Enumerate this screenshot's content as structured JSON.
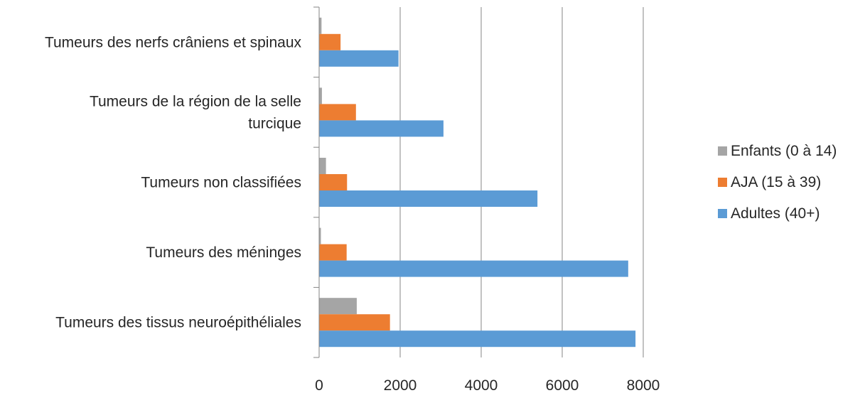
{
  "chart_data": {
    "type": "bar",
    "orientation": "horizontal",
    "categories": [
      [
        "Tumeurs des nerfs crâniens et spinaux"
      ],
      [
        "Tumeurs de la région de la selle",
        "turcique"
      ],
      [
        "Tumeurs non classifiées"
      ],
      [
        "Tumeurs des méninges"
      ],
      [
        "Tumeurs des tissus neuroépithéliales"
      ]
    ],
    "series": [
      {
        "name": "Enfants (0 à 14)",
        "color": "#a5a5a5",
        "values": [
          50,
          60,
          160,
          35,
          920
        ]
      },
      {
        "name": "AJA (15 à 39)",
        "color": "#ed7d31",
        "values": [
          520,
          900,
          680,
          670,
          1740
        ]
      },
      {
        "name": "Adultes (40+)",
        "color": "#5b9bd5",
        "values": [
          1950,
          3060,
          5380,
          7620,
          7800
        ]
      }
    ],
    "xlim": [
      0,
      8000
    ],
    "xticks": [
      "0",
      "2000",
      "4000",
      "6000",
      "8000"
    ],
    "grid": "vertical",
    "legend_position": "right"
  }
}
